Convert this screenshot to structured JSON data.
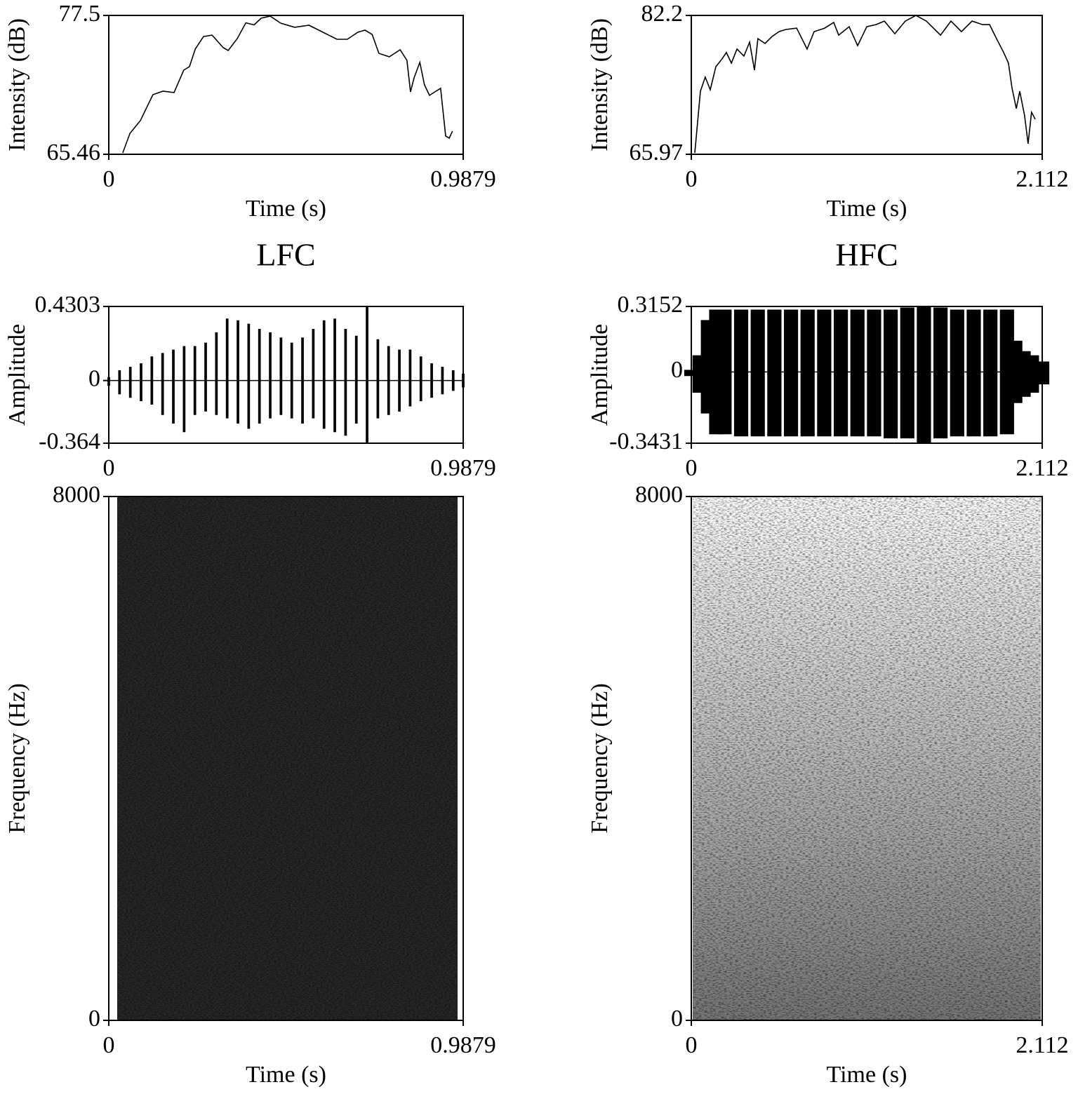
{
  "chart_data": [
    {
      "type": "line",
      "ylabel": "Intensity (dB)",
      "xlabel": "Time (s)",
      "xlim": [
        0,
        0.9879
      ],
      "ylim": [
        65.46,
        77.5
      ],
      "xticks": [
        0,
        0.9879
      ],
      "yticks": [
        65.46,
        77.5
      ],
      "color": "#000000",
      "x": [
        0.039,
        0.059,
        0.088,
        0.123,
        0.151,
        0.182,
        0.209,
        0.225,
        0.241,
        0.264,
        0.288,
        0.319,
        0.333,
        0.358,
        0.382,
        0.405,
        0.425,
        0.45,
        0.479,
        0.518,
        0.558,
        0.597,
        0.636,
        0.665,
        0.694,
        0.714,
        0.734,
        0.753,
        0.782,
        0.812,
        0.831,
        0.841,
        0.851,
        0.867,
        0.88,
        0.894,
        0.909,
        0.925,
        0.939,
        0.949,
        0.958
      ],
      "values": [
        65.58,
        67.28,
        68.38,
        70.63,
        70.93,
        70.81,
        72.76,
        73.06,
        74.58,
        75.67,
        75.79,
        74.7,
        74.46,
        75.49,
        76.86,
        76.68,
        77.26,
        77.44,
        76.83,
        76.47,
        76.65,
        76.04,
        75.43,
        75.43,
        76.04,
        76.22,
        75.86,
        74.21,
        73.91,
        74.52,
        73.61,
        70.87,
        72.09,
        73.43,
        71.48,
        70.57,
        70.87,
        71.18,
        67.04,
        66.86,
        67.46
      ]
    },
    {
      "type": "line",
      "ylabel": "Intensity (dB)",
      "xlabel": "Time (s)",
      "xlim": [
        0,
        2.112
      ],
      "ylim": [
        65.97,
        82.2
      ],
      "xticks": [
        0,
        2.112
      ],
      "yticks": [
        65.97,
        82.2
      ],
      "color": "#000000",
      "x": [
        0.021,
        0.055,
        0.084,
        0.114,
        0.148,
        0.182,
        0.211,
        0.241,
        0.275,
        0.317,
        0.351,
        0.38,
        0.401,
        0.444,
        0.486,
        0.528,
        0.57,
        0.634,
        0.697,
        0.739,
        0.803,
        0.857,
        0.887,
        0.95,
        1.001,
        1.056,
        1.111,
        1.162,
        1.225,
        1.288,
        1.352,
        1.415,
        1.5,
        1.563,
        1.626,
        1.69,
        1.753,
        1.795,
        1.837,
        1.88,
        1.909,
        1.93,
        1.956,
        1.977,
        2.006,
        2.027,
        2.048,
        2.07
      ],
      "values": [
        66.13,
        73.35,
        74.99,
        73.51,
        76.22,
        77.04,
        77.86,
        76.63,
        78.27,
        77.45,
        79.08,
        75.81,
        79.49,
        78.92,
        79.74,
        80.31,
        80.56,
        80.72,
        78.27,
        80.31,
        80.72,
        81.38,
        79.9,
        80.88,
        78.67,
        80.88,
        81.13,
        81.54,
        80.06,
        81.54,
        82.2,
        81.54,
        79.9,
        81.54,
        80.31,
        81.54,
        81.13,
        81.13,
        79.49,
        77.86,
        76.63,
        73.76,
        71.31,
        73.35,
        70.48,
        67.21,
        70.89,
        70.07
      ]
    },
    {
      "type": "waveform",
      "title": "LFC",
      "ylabel": "Amplitude",
      "xlim": [
        0,
        0.9879
      ],
      "ylim": [
        -0.364,
        0.4303
      ],
      "xticks": [
        0,
        0.9879
      ],
      "yticks": [
        -0.364,
        0,
        0.4303
      ],
      "color": "#000000",
      "x": [
        0,
        0.03,
        0.06,
        0.09,
        0.12,
        0.15,
        0.18,
        0.21,
        0.24,
        0.27,
        0.3,
        0.33,
        0.36,
        0.39,
        0.42,
        0.45,
        0.48,
        0.51,
        0.54,
        0.57,
        0.6,
        0.63,
        0.66,
        0.69,
        0.72,
        0.75,
        0.78,
        0.81,
        0.84,
        0.87,
        0.9,
        0.93,
        0.96,
        0.9879
      ],
      "max": [
        0.02,
        0.06,
        0.08,
        0.1,
        0.14,
        0.16,
        0.18,
        0.2,
        0.2,
        0.22,
        0.28,
        0.36,
        0.35,
        0.33,
        0.3,
        0.28,
        0.25,
        0.22,
        0.25,
        0.3,
        0.35,
        0.36,
        0.3,
        0.26,
        0.43,
        0.24,
        0.2,
        0.18,
        0.18,
        0.14,
        0.1,
        0.08,
        0.06,
        0.04
      ],
      "min": [
        -0.03,
        -0.08,
        -0.1,
        -0.12,
        -0.14,
        -0.2,
        -0.25,
        -0.3,
        -0.2,
        -0.18,
        -0.2,
        -0.22,
        -0.25,
        -0.28,
        -0.25,
        -0.22,
        -0.2,
        -0.22,
        -0.25,
        -0.22,
        -0.28,
        -0.3,
        -0.32,
        -0.25,
        -0.36,
        -0.22,
        -0.2,
        -0.18,
        -0.15,
        -0.12,
        -0.1,
        -0.08,
        -0.06,
        -0.04
      ]
    },
    {
      "type": "waveform",
      "title": "HFC",
      "ylabel": "Amplitude",
      "xlim": [
        0,
        2.112
      ],
      "ylim": [
        -0.3431,
        0.3152
      ],
      "xticks": [
        0,
        2.112
      ],
      "yticks": [
        -0.3431,
        0,
        0.3152
      ],
      "color": "#000000",
      "x": [
        0,
        0.05,
        0.1,
        0.15,
        0.2,
        0.3,
        0.4,
        0.5,
        0.6,
        0.7,
        0.8,
        0.9,
        1.0,
        1.1,
        1.2,
        1.3,
        1.4,
        1.5,
        1.6,
        1.7,
        1.8,
        1.9,
        1.95,
        2.0,
        2.05,
        2.112
      ],
      "max": [
        0.01,
        0.08,
        0.25,
        0.3,
        0.3,
        0.3,
        0.3,
        0.3,
        0.3,
        0.3,
        0.3,
        0.3,
        0.3,
        0.3,
        0.3,
        0.31,
        0.3152,
        0.31,
        0.3,
        0.3,
        0.3,
        0.3,
        0.15,
        0.1,
        0.08,
        0.05
      ],
      "min": [
        -0.02,
        -0.1,
        -0.2,
        -0.3,
        -0.3,
        -0.31,
        -0.31,
        -0.31,
        -0.31,
        -0.31,
        -0.31,
        -0.31,
        -0.31,
        -0.31,
        -0.32,
        -0.32,
        -0.3431,
        -0.32,
        -0.31,
        -0.31,
        -0.31,
        -0.3,
        -0.15,
        -0.12,
        -0.1,
        -0.06
      ]
    },
    {
      "type": "spectrogram",
      "ylabel": "Frequency (Hz)",
      "xlabel": "Time (s)",
      "xlim": [
        0,
        0.9879
      ],
      "ylim": [
        0,
        8000
      ],
      "xticks": [
        0,
        0.9879
      ],
      "yticks": [
        0,
        8000
      ]
    },
    {
      "type": "spectrogram",
      "ylabel": "Frequency (Hz)",
      "xlabel": "Time (s)",
      "xlim": [
        0,
        2.112
      ],
      "ylim": [
        0,
        8000
      ],
      "xticks": [
        0,
        2.112
      ],
      "yticks": [
        0,
        8000
      ]
    }
  ]
}
